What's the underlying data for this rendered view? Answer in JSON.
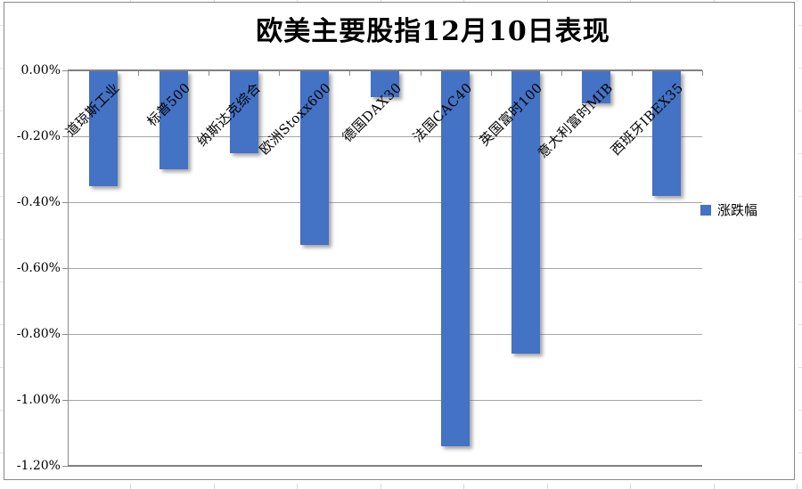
{
  "chart_data": {
    "type": "bar",
    "title": "欧美主要股指12月10日表现",
    "categories": [
      "道琼斯工业",
      "标普500",
      "纳斯达克综合",
      "欧洲Stoxx600",
      "德国DAX30",
      "法国CAC40",
      "英国富时100",
      "意大利富时MIB",
      "西班牙IBEX35"
    ],
    "series": [
      {
        "name": "涨跌幅",
        "values": [
          -0.35,
          -0.3,
          -0.25,
          -0.53,
          -0.08,
          -1.14,
          -0.86,
          -0.1,
          -0.38
        ]
      }
    ],
    "value_unit": "%",
    "ylim": [
      -1.2,
      0
    ],
    "yticks": [
      {
        "label": "0.00%",
        "value": 0.0
      },
      {
        "label": "-0.20%",
        "value": -0.2
      },
      {
        "label": "-0.40%",
        "value": -0.4
      },
      {
        "label": "-0.60%",
        "value": -0.6
      },
      {
        "label": "-0.80%",
        "value": -0.8
      },
      {
        "label": "-1.00%",
        "value": -1.0
      },
      {
        "label": "-1.20%",
        "value": -1.2
      }
    ],
    "grid": true,
    "legend_position": "right",
    "bar_color": "#4472C4",
    "orientation": "vertical"
  },
  "colors": {
    "bar": "#4472C4",
    "gridline": "#A6A6A6",
    "axis": "#808080",
    "frame": "#8A8A8A",
    "text": "#000000"
  }
}
